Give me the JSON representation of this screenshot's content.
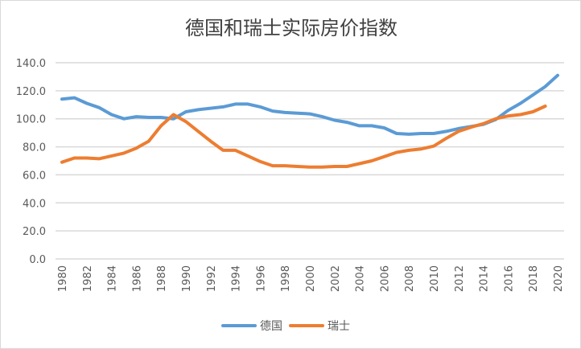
{
  "chart_data": {
    "type": "line",
    "title": "德国和瑞士实际房价指数",
    "xlabel": "",
    "ylabel": "",
    "ylim": [
      0,
      140
    ],
    "yticks": [
      "0.0",
      "20.0",
      "40.0",
      "60.0",
      "80.0",
      "100.0",
      "120.0",
      "140.0"
    ],
    "x": [
      1980,
      1981,
      1982,
      1983,
      1984,
      1985,
      1986,
      1987,
      1988,
      1989,
      1990,
      1991,
      1992,
      1993,
      1994,
      1995,
      1996,
      1997,
      1998,
      1999,
      2000,
      2001,
      2002,
      2003,
      2004,
      2005,
      2006,
      2007,
      2008,
      2009,
      2010,
      2011,
      2012,
      2013,
      2014,
      2015,
      2016,
      2017,
      2018,
      2019,
      2020
    ],
    "xticks": [
      "1980",
      "1982",
      "1984",
      "1986",
      "1988",
      "1990",
      "1992",
      "1994",
      "1996",
      "1998",
      "2000",
      "2002",
      "2004",
      "2006",
      "2008",
      "2010",
      "2012",
      "2014",
      "2016",
      "2018",
      "2020"
    ],
    "grid": true,
    "legend": "bottom",
    "series": [
      {
        "name": "德国",
        "color": "#5b9bd5",
        "values": [
          114,
          115,
          111,
          108,
          103,
          100,
          101.5,
          101,
          101,
          100,
          105,
          106.5,
          107.5,
          108.5,
          110.5,
          110.5,
          108.5,
          105.5,
          104.5,
          104,
          103.5,
          101.5,
          99,
          97.5,
          95,
          95,
          93.5,
          89.5,
          89,
          89.5,
          89.5,
          91,
          93,
          94.5,
          96,
          99.5,
          106,
          111,
          117,
          123,
          131
        ]
      },
      {
        "name": "瑞士",
        "color": "#ed7d31",
        "values": [
          69,
          72,
          72,
          71.5,
          73.5,
          75.5,
          79,
          84,
          95,
          103,
          98,
          91,
          84,
          77.5,
          77.5,
          73.5,
          69.5,
          66.5,
          66.5,
          66,
          65.5,
          65.5,
          66,
          66,
          68,
          70,
          73,
          76,
          77.5,
          78.5,
          80.5,
          86,
          91,
          94,
          96.5,
          100,
          102,
          103,
          105,
          109,
          null
        ]
      }
    ]
  }
}
